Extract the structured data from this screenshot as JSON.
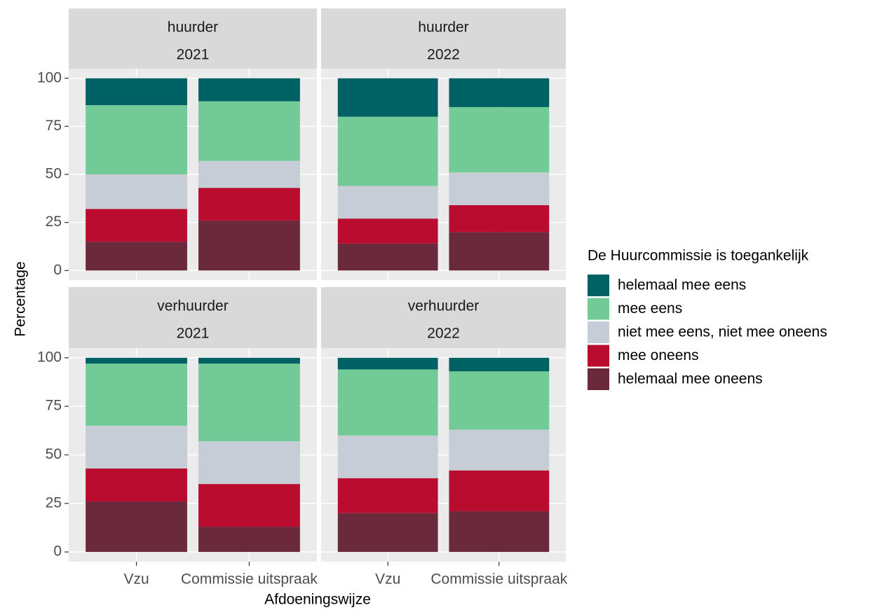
{
  "chart_data": {
    "type": "bar",
    "stacked": true,
    "x_label": "Afdoeningswijze",
    "y_label": "Percentage",
    "legend_title": "De Huurcommissie is toegankelijk",
    "categories": [
      "Vzu",
      "Commissie uitspraak"
    ],
    "ylim": [
      0,
      100
    ],
    "yticks": [
      0,
      25,
      50,
      75,
      100
    ],
    "grid": true,
    "legend": "right",
    "series": [
      {
        "name": "helemaal mee eens",
        "color": "#006164"
      },
      {
        "name": "mee eens",
        "color": "#72cb96"
      },
      {
        "name": "niet mee eens, niet mee oneens",
        "color": "#c6cdd6"
      },
      {
        "name": "mee oneens",
        "color": "#ba0c2f"
      },
      {
        "name": "helemaal mee oneens",
        "color": "#6b2a3c"
      }
    ],
    "facets": [
      {
        "labels": [
          "huurder",
          "2021"
        ],
        "series": [
          {
            "values": [
              14,
              12
            ]
          },
          {
            "values": [
              36,
              31
            ]
          },
          {
            "values": [
              18,
              14
            ]
          },
          {
            "values": [
              17,
              17
            ]
          },
          {
            "values": [
              15,
              26
            ]
          }
        ]
      },
      {
        "labels": [
          "huurder",
          "2022"
        ],
        "series": [
          {
            "values": [
              20,
              15
            ]
          },
          {
            "values": [
              36,
              34
            ]
          },
          {
            "values": [
              17,
              17
            ]
          },
          {
            "values": [
              13,
              14
            ]
          },
          {
            "values": [
              14,
              20
            ]
          }
        ]
      },
      {
        "labels": [
          "verhuurder",
          "2021"
        ],
        "series": [
          {
            "values": [
              3,
              3
            ]
          },
          {
            "values": [
              32,
              40
            ]
          },
          {
            "values": [
              22,
              22
            ]
          },
          {
            "values": [
              17,
              22
            ]
          },
          {
            "values": [
              26,
              13
            ]
          }
        ]
      },
      {
        "labels": [
          "verhuurder",
          "2022"
        ],
        "series": [
          {
            "values": [
              6,
              7
            ]
          },
          {
            "values": [
              34,
              30
            ]
          },
          {
            "values": [
              22,
              21
            ]
          },
          {
            "values": [
              18,
              21
            ]
          },
          {
            "values": [
              20,
              21
            ]
          }
        ]
      }
    ]
  }
}
